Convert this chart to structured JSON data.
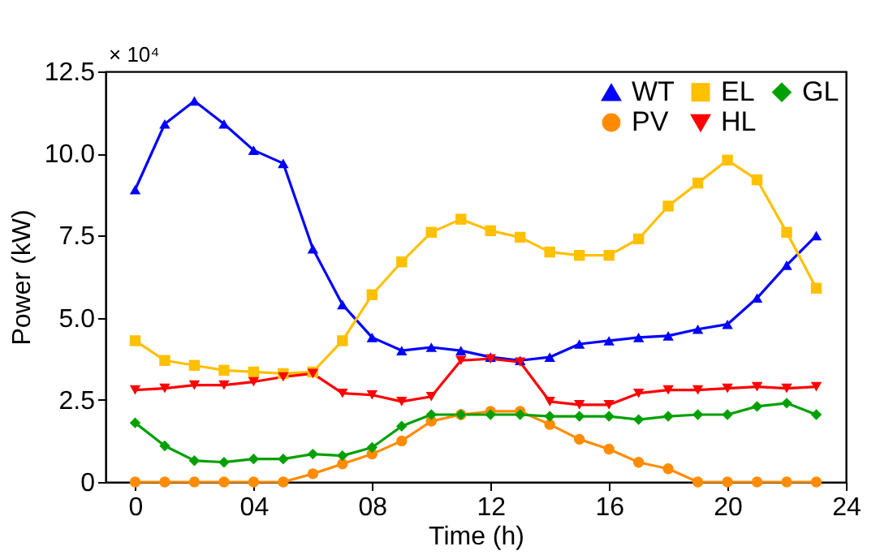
{
  "chart_data": {
    "type": "line",
    "xlabel": "Time (h)",
    "ylabel": "Power (kW)",
    "annotations": [
      "× 10⁴"
    ],
    "x": [
      0,
      1,
      2,
      3,
      4,
      5,
      6,
      7,
      8,
      9,
      10,
      11,
      12,
      13,
      14,
      15,
      16,
      17,
      18,
      19,
      20,
      21,
      22,
      23
    ],
    "xlim": [
      -1,
      24
    ],
    "xticks": [
      0,
      {
        "value": 4,
        "label": "04"
      },
      {
        "value": 8,
        "label": "08"
      },
      12,
      16,
      20,
      24
    ],
    "ylim": [
      0,
      12.5
    ],
    "yticks": [
      0,
      2.5,
      {
        "value": 5,
        "label": "5.0"
      },
      7.5,
      {
        "value": 10,
        "label": "10.0"
      },
      12.5
    ],
    "grid": false,
    "legend": "top right",
    "line_style": "solid",
    "series": [
      {
        "name": "WT",
        "color": "#0000ff",
        "marker": "triangle-up",
        "values": [
          8.9,
          10.9,
          11.6,
          10.9,
          10.1,
          9.7,
          7.1,
          5.4,
          4.4,
          4.0,
          4.1,
          4.0,
          3.8,
          3.7,
          3.8,
          4.2,
          4.3,
          4.4,
          4.45,
          4.65,
          4.8,
          5.6,
          6.6,
          7.5
        ]
      },
      {
        "name": "PV",
        "color": "#ff8c00",
        "marker": "circle",
        "values": [
          0,
          0,
          0,
          0,
          0,
          0,
          0.25,
          0.55,
          0.85,
          1.25,
          1.85,
          2.05,
          2.15,
          2.15,
          1.75,
          1.3,
          1.0,
          0.6,
          0.4,
          0,
          0,
          0,
          0,
          0
        ]
      },
      {
        "name": "EL",
        "color": "#ffc000",
        "marker": "square",
        "values": [
          4.3,
          3.7,
          3.55,
          3.4,
          3.35,
          3.3,
          3.35,
          4.3,
          5.7,
          6.7,
          7.6,
          8.0,
          7.65,
          7.45,
          7.0,
          6.9,
          6.9,
          7.4,
          8.4,
          9.1,
          9.8,
          9.2,
          7.6,
          5.9
        ]
      },
      {
        "name": "HL",
        "color": "#ff0000",
        "marker": "triangle-down",
        "values": [
          2.8,
          2.85,
          2.95,
          2.95,
          3.05,
          3.2,
          3.3,
          2.7,
          2.65,
          2.45,
          2.6,
          3.7,
          3.75,
          3.65,
          2.45,
          2.35,
          2.35,
          2.7,
          2.8,
          2.8,
          2.85,
          2.9,
          2.85,
          2.9
        ]
      },
      {
        "name": "GL",
        "color": "#00a000",
        "marker": "diamond",
        "values": [
          1.8,
          1.1,
          0.65,
          0.6,
          0.7,
          0.7,
          0.85,
          0.8,
          1.05,
          1.7,
          2.05,
          2.05,
          2.05,
          2.05,
          2.0,
          2.0,
          2.0,
          1.9,
          2.0,
          2.05,
          2.05,
          2.3,
          2.4,
          2.05
        ]
      }
    ]
  }
}
